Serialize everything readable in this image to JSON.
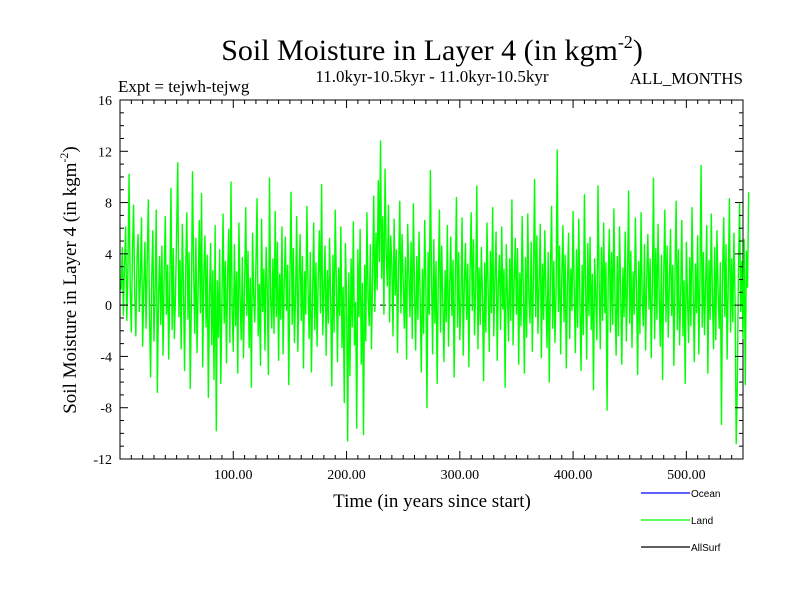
{
  "chart_data": {
    "type": "line",
    "title": "Soil Moisture in Layer 4 (in kgm",
    "title_sup": "-2",
    "title_close": ")",
    "experiment": "Expt = tejwh-tejwg",
    "period": "11.0kyr-10.5kyr - 11.0kyr-10.5kyr",
    "season": "ALL_MONTHS",
    "xlabel": "Time (in years since start)",
    "ylabel": "Soil Moisture in Layer 4 (in kgm",
    "ylabel_sup": "-2",
    "ylabel_close": ")",
    "xlim": [
      0,
      550
    ],
    "ylim": [
      -12,
      16
    ],
    "yticks": [
      -12,
      -8,
      -4,
      0,
      4,
      8,
      12,
      16
    ],
    "xticks": [
      100,
      200,
      300,
      400,
      500
    ],
    "xtick_labels": [
      "100.00",
      "200.00",
      "300.00",
      "400.00",
      "500.00"
    ],
    "zero_line": 0,
    "legend": [
      {
        "name": "Ocean",
        "color": "#0000ff"
      },
      {
        "name": "Land",
        "color": "#00ff00"
      },
      {
        "name": "AllSurf",
        "color": "#000000"
      }
    ],
    "series": [
      {
        "name": "Land",
        "color": "#00ff00",
        "x_start": 1,
        "x_step": 1,
        "values": [
          1.2,
          4.5,
          -0.8,
          3.2,
          6.1,
          -1.2,
          2.8,
          10.2,
          1.5,
          -2.1,
          4.2,
          7.8,
          0.9,
          -2.4,
          3.6,
          5.5,
          -0.5,
          2.1,
          6.8,
          -3.2,
          1.4,
          4.9,
          -1.8,
          3.3,
          8.2,
          -0.4,
          -5.6,
          2.2,
          5.8,
          -2.8,
          1.1,
          7.4,
          -6.8,
          0.6,
          3.8,
          -1.5,
          4.6,
          -3.9,
          2.5,
          6.9,
          -0.7,
          3.1,
          -4.2,
          1.8,
          9.1,
          -1.9,
          4.4,
          -2.6,
          0.8,
          5.7,
          11.1,
          -0.9,
          3.5,
          -3.4,
          6.3,
          1.6,
          -5.1,
          2.9,
          7.2,
          -1.1,
          4.1,
          -6.5,
          0.3,
          10.4,
          2.6,
          -2.2,
          5.2,
          -3.7,
          1.3,
          6.6,
          -0.6,
          8.7,
          -4.8,
          2.4,
          5.4,
          -1.7,
          3.9,
          -7.2,
          0.5,
          4.8,
          -3.1,
          2.7,
          -5.8,
          6.2,
          -9.8,
          1.9,
          -2.5,
          4.3,
          -6.1,
          0.4,
          7.1,
          -1.4,
          3.4,
          -4.5,
          2.3,
          5.9,
          -2.9,
          9.6,
          -0.3,
          -3.6,
          4.7,
          -1.6,
          2.6,
          -5.3,
          6.4,
          0.7,
          -2.7,
          3.7,
          -4.1,
          1.5,
          7.6,
          -0.8,
          4.2,
          -3.3,
          2.1,
          -6.4,
          5.6,
          0.9,
          -1.3,
          3.2,
          8.3,
          -2.4,
          1.6,
          -4.7,
          6.7,
          -0.5,
          2.8,
          -3.5,
          4.5,
          1.2,
          -5.4,
          9.9,
          0.6,
          -1.8,
          3.6,
          -2.2,
          7.3,
          -0.9,
          4.9,
          -4.3,
          2.4,
          -1.1,
          6.1,
          -3.8,
          1.7,
          5.3,
          -0.4,
          3.1,
          -6.2,
          2.2,
          8.8,
          -1.5,
          4.4,
          -2.9,
          0.8,
          6.9,
          -3.6,
          1.9,
          5.5,
          -1.2,
          3.8,
          -4.9,
          2.6,
          -0.7,
          7.7,
          1.3,
          -2.6,
          4.1,
          -5.2,
          0.5,
          6.4,
          -1.9,
          3.3,
          -3.2,
          2.1,
          5.8,
          -0.6,
          9.4,
          -2.3,
          1.1,
          4.6,
          -3.9,
          2.7,
          -1.4,
          5.2,
          0.3,
          -6.3,
          3.9,
          -2.1,
          7.4,
          1.8,
          -4.4,
          2.9,
          -0.8,
          6.1,
          -3.3,
          1.4,
          -7.6,
          4.8,
          0.9,
          -10.6,
          2.5,
          -5.5,
          3.6,
          -1.7,
          6.5,
          -3.1,
          0.2,
          -9.6,
          4.3,
          -0.9,
          5.9,
          -4.6,
          1.7,
          -10.1,
          3.1,
          -2.8,
          7.2,
          0.6,
          -1.6,
          4.7,
          -3.4,
          2.2,
          8.5,
          -0.5,
          5.6,
          1.2,
          9.7,
          3.4,
          12.8,
          2.1,
          6.9,
          -0.7,
          10.6,
          4.2,
          1.5,
          7.8,
          -1.3,
          5.4,
          3.1,
          -2.4,
          6.7,
          0.8,
          4.3,
          -3.7,
          2.9,
          8.1,
          -0.6,
          5.5,
          1.9,
          -1.8,
          3.7,
          -4.2,
          6.3,
          2.4,
          -0.9,
          4.9,
          -2.6,
          7.9,
          1.3,
          -3.5,
          3.8,
          -1.1,
          5.7,
          0.4,
          -5.2,
          2.8,
          -2.2,
          6.6,
          1.6,
          -8.0,
          4.1,
          -0.7,
          10.5,
          2.3,
          -3.8,
          5.1,
          -1.4,
          3.4,
          -6.1,
          1.9,
          7.4,
          -2.1,
          4.6,
          0.2,
          -4.4,
          2.7,
          -1.3,
          6.2,
          -3.2,
          1.1,
          5.3,
          -0.8,
          3.5,
          -5.6,
          2.1,
          8.4,
          -1.7,
          4.1,
          -2.7,
          0.5,
          6.8,
          -3.9,
          1.7,
          4.8,
          -1.1,
          3.2,
          -4.8,
          2.6,
          7.2,
          -0.4,
          5.1,
          -2.3,
          1.4,
          9.3,
          -3.4,
          2.9,
          -1.5,
          4.5,
          0.7,
          -5.9,
          3.3,
          -2.1,
          6.4,
          1.2,
          -3.6,
          4.2,
          -0.6,
          7.6,
          -2.4,
          2.1,
          5.7,
          -4.3,
          1.6,
          3.9,
          -1.9,
          6.1,
          -0.3,
          2.8,
          -6.4,
          4.7,
          0.9,
          -2.8,
          3.6,
          -1.2,
          8.2,
          -3.1,
          1.8,
          5.2,
          -0.7,
          4.4,
          -4.6,
          2.5,
          -1.6,
          6.9,
          1.4,
          -5.3,
          3.7,
          -2.5,
          7.1,
          0.6,
          -1.4,
          4.9,
          -3.6,
          2.3,
          9.8,
          -0.9,
          5.4,
          -2.2,
          1.7,
          6.3,
          -4.1,
          3.2,
          -1.1,
          5.8,
          0.8,
          -3.3,
          4.1,
          -6.0,
          2.7,
          7.7,
          -1.8,
          3.4,
          -2.9,
          1.2,
          12.1,
          -0.5,
          4.6,
          -3.8,
          2.2,
          6.2,
          -1.3,
          3.9,
          -4.9,
          1.5,
          5.6,
          -2.6,
          2.8,
          -0.4,
          7.3,
          1.1,
          -3.7,
          4.3,
          -1.7,
          6.7,
          0.3,
          -5.1,
          3.1,
          -2.3,
          8.6,
          1.6,
          -4.2,
          4.8,
          -0.8,
          5.3,
          -1.9,
          2.4,
          -6.6,
          3.6,
          0.7,
          -2.7,
          9.3,
          1.9,
          -3.4,
          4.5,
          -1.2,
          6.4,
          -0.6,
          3.3,
          -8.2,
          2.1,
          5.9,
          -2.1,
          4.1,
          -1.5,
          7.5,
          0.4,
          -3.9,
          3.8,
          -2.4,
          6.1,
          1.3,
          -4.6,
          2.9,
          -0.9,
          5.7,
          -2.8,
          1.8,
          8.9,
          -1.4,
          4.2,
          -3.3,
          2.6,
          -0.7,
          6.8,
          1.2,
          -5.4,
          3.4,
          -2.2,
          7.2,
          0.5,
          -1.6,
          4.7,
          -3.5,
          2.1,
          5.5,
          -0.3,
          3.6,
          -4.1,
          1.7,
          9.9,
          -2.6,
          4.4,
          -1.1,
          6.3,
          0.8,
          -3.2,
          3.9,
          -5.8,
          2.4,
          7.4,
          -1.3,
          4.6,
          -2.5,
          1.5,
          5.9,
          -0.8,
          3.1,
          -4.7,
          2.7,
          8.1,
          -1.9,
          4.3,
          -3.1,
          0.9,
          6.6,
          -2.4,
          1.9,
          -6.1,
          4.9,
          0.4,
          -2.9,
          3.7,
          -1.6,
          7.6,
          1.3,
          -4.4,
          3.2,
          -0.6,
          5.4,
          -3.8,
          2.2,
          10.9,
          -1.7,
          4.1,
          -2.3,
          1.6,
          6.2,
          -5.3,
          3.5,
          -1.1,
          7.1,
          0.6,
          -3.4,
          4.5,
          -2.7,
          5.8,
          1.1,
          -1.8,
          3.3,
          -9.3,
          2.5,
          6.8,
          -0.9,
          4.7,
          -4.2,
          1.8,
          8.3,
          -2.1,
          3.6,
          -1.3,
          5.6,
          0.3,
          -10.8,
          -6.1,
          2.8,
          7.9,
          -0.5,
          3.4,
          -2.6,
          5.1,
          -6.2,
          4.2,
          1.4,
          8.8
        ]
      }
    ]
  }
}
